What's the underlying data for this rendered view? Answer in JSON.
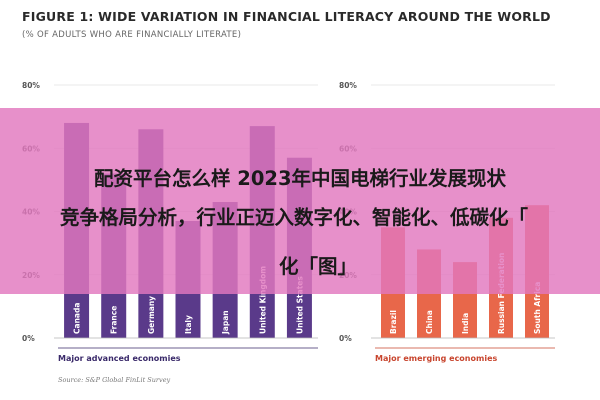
{
  "header": {
    "title": "FIGURE 1: WIDE VARIATION IN FINANCIAL LITERACY AROUND THE WORLD",
    "subtitle": "(% OF ADULTS WHO ARE FINANCIALLY LITERATE)"
  },
  "overlay": {
    "line1": "配资平台怎么样 2023年中国电梯行业发展现状",
    "line2": "竞争格局分析，行业正迈入数字化、智能化、低碳化「",
    "line3": "化「图」"
  },
  "source": "Source: S&P Global FinLit Survey",
  "colors": {
    "advanced": "#5a3a8a",
    "emerging": "#e8674a",
    "panel_label_advanced": "#3a2a6a",
    "panel_label_emerging": "#c8452e"
  },
  "chart_data": [
    {
      "type": "bar",
      "panel": "advanced",
      "xlabel": "Major advanced economies",
      "ylim": [
        0,
        80
      ],
      "yticks": [
        "80%",
        "60%",
        "40%",
        "20%",
        "0%"
      ],
      "grid": true,
      "categories": [
        "Canada",
        "France",
        "Germany",
        "Italy",
        "Japan",
        "United Kingdom",
        "United States"
      ],
      "values": [
        68,
        52,
        66,
        37,
        43,
        67,
        57
      ]
    },
    {
      "type": "bar",
      "panel": "emerging",
      "xlabel": "Major emerging economies",
      "ylim": [
        0,
        80
      ],
      "yticks": [
        "80%",
        "60%",
        "40%",
        "20%",
        "0%"
      ],
      "grid": true,
      "categories": [
        "Brazil",
        "China",
        "India",
        "Russian Federation",
        "South Africa"
      ],
      "values": [
        35,
        28,
        24,
        38,
        42
      ]
    }
  ]
}
